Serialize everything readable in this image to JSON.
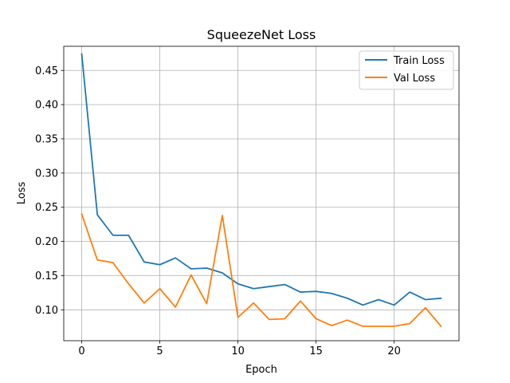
{
  "chart_data": {
    "type": "line",
    "title": "SqueezeNet Loss",
    "xlabel": "Epoch",
    "ylabel": "Loss",
    "xlim": [
      -1.15,
      24.15
    ],
    "ylim": [
      0.0549,
      0.4853
    ],
    "xticks": [
      0,
      5,
      10,
      15,
      20
    ],
    "xtick_labels": [
      "0",
      "5",
      "10",
      "15",
      "20"
    ],
    "yticks": [
      0.1,
      0.15,
      0.2,
      0.25,
      0.3,
      0.35,
      0.4,
      0.45
    ],
    "ytick_labels": [
      "0.10",
      "0.15",
      "0.20",
      "0.25",
      "0.30",
      "0.35",
      "0.40",
      "0.45"
    ],
    "grid": true,
    "legend_position": "top-right",
    "x": [
      0,
      1,
      2,
      3,
      4,
      5,
      6,
      7,
      8,
      9,
      10,
      11,
      12,
      13,
      14,
      15,
      16,
      17,
      18,
      19,
      20,
      21,
      22,
      23
    ],
    "series": [
      {
        "name": "Train Loss",
        "color": "#1f77b4",
        "values": [
          0.474,
          0.239,
          0.209,
          0.209,
          0.17,
          0.166,
          0.176,
          0.16,
          0.161,
          0.154,
          0.138,
          0.131,
          0.134,
          0.137,
          0.126,
          0.127,
          0.124,
          0.117,
          0.107,
          0.115,
          0.107,
          0.126,
          0.115,
          0.117
        ]
      },
      {
        "name": "Val Loss",
        "color": "#ff7f0e",
        "values": [
          0.24,
          0.173,
          0.169,
          0.138,
          0.11,
          0.131,
          0.104,
          0.151,
          0.109,
          0.238,
          0.089,
          0.11,
          0.086,
          0.087,
          0.113,
          0.087,
          0.077,
          0.085,
          0.076,
          0.076,
          0.076,
          0.08,
          0.103,
          0.076
        ]
      }
    ]
  }
}
